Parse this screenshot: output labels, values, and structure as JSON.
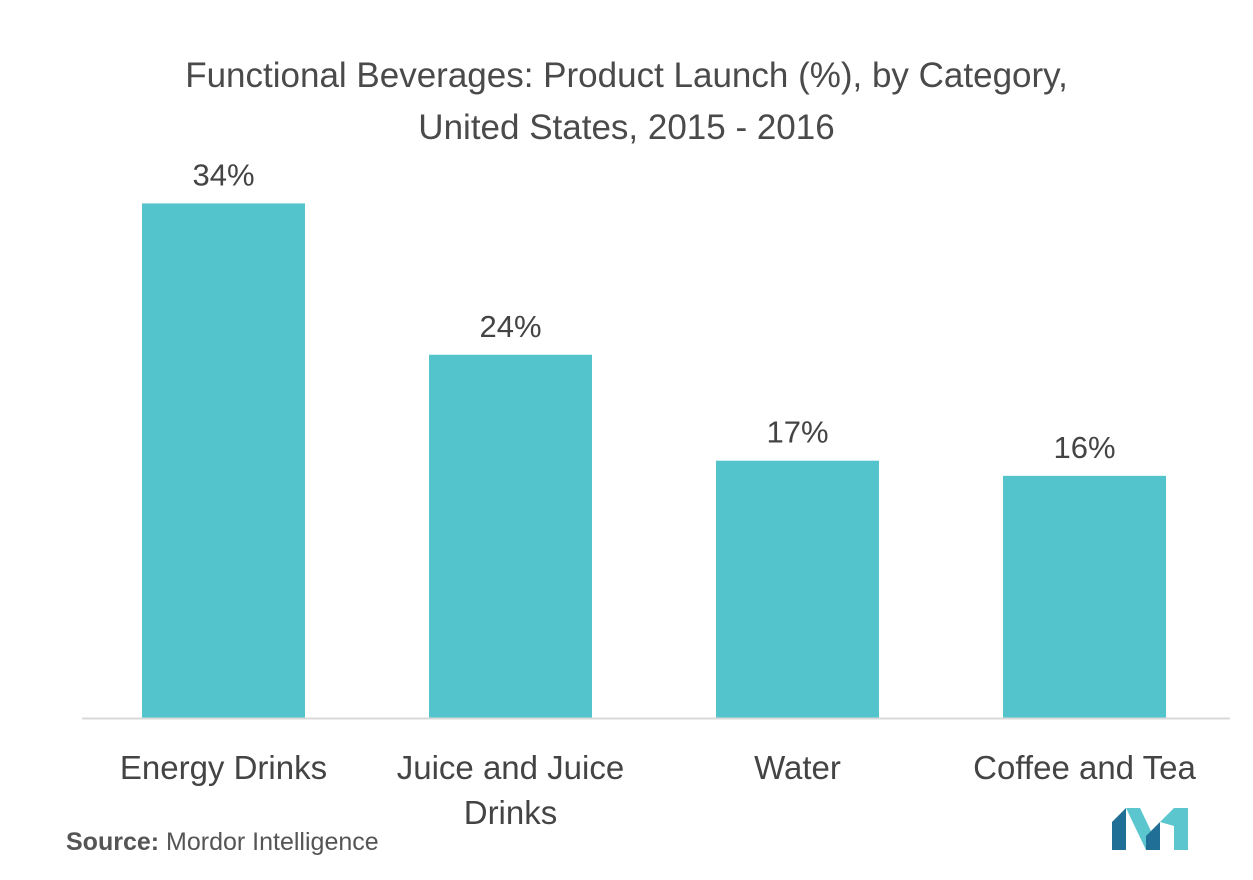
{
  "chart_data": {
    "type": "bar",
    "title_lines": [
      "Functional Beverages: Product Launch (%), by Category,",
      "United States, 2015 - 2016"
    ],
    "categories": [
      [
        "Energy Drinks"
      ],
      [
        "Juice and Juice",
        "Drinks"
      ],
      [
        "Water"
      ],
      [
        "Coffee and Tea"
      ]
    ],
    "values": [
      34,
      24,
      17,
      16
    ],
    "value_labels": [
      "34%",
      "24%",
      "17%",
      "16%"
    ],
    "unit": "%",
    "ylim": [
      0,
      37
    ],
    "grid": false,
    "xlabel": "",
    "ylabel": "",
    "bar_color": "#53c4cb",
    "axis_color": "#d9d9d9"
  },
  "footer": {
    "source_label": "Source:",
    "source_text": "Mordor Intelligence"
  },
  "logo": {
    "name": "mordor-intelligence-logo",
    "color_dark": "#1f6f97",
    "color_light": "#5cc6cf"
  }
}
